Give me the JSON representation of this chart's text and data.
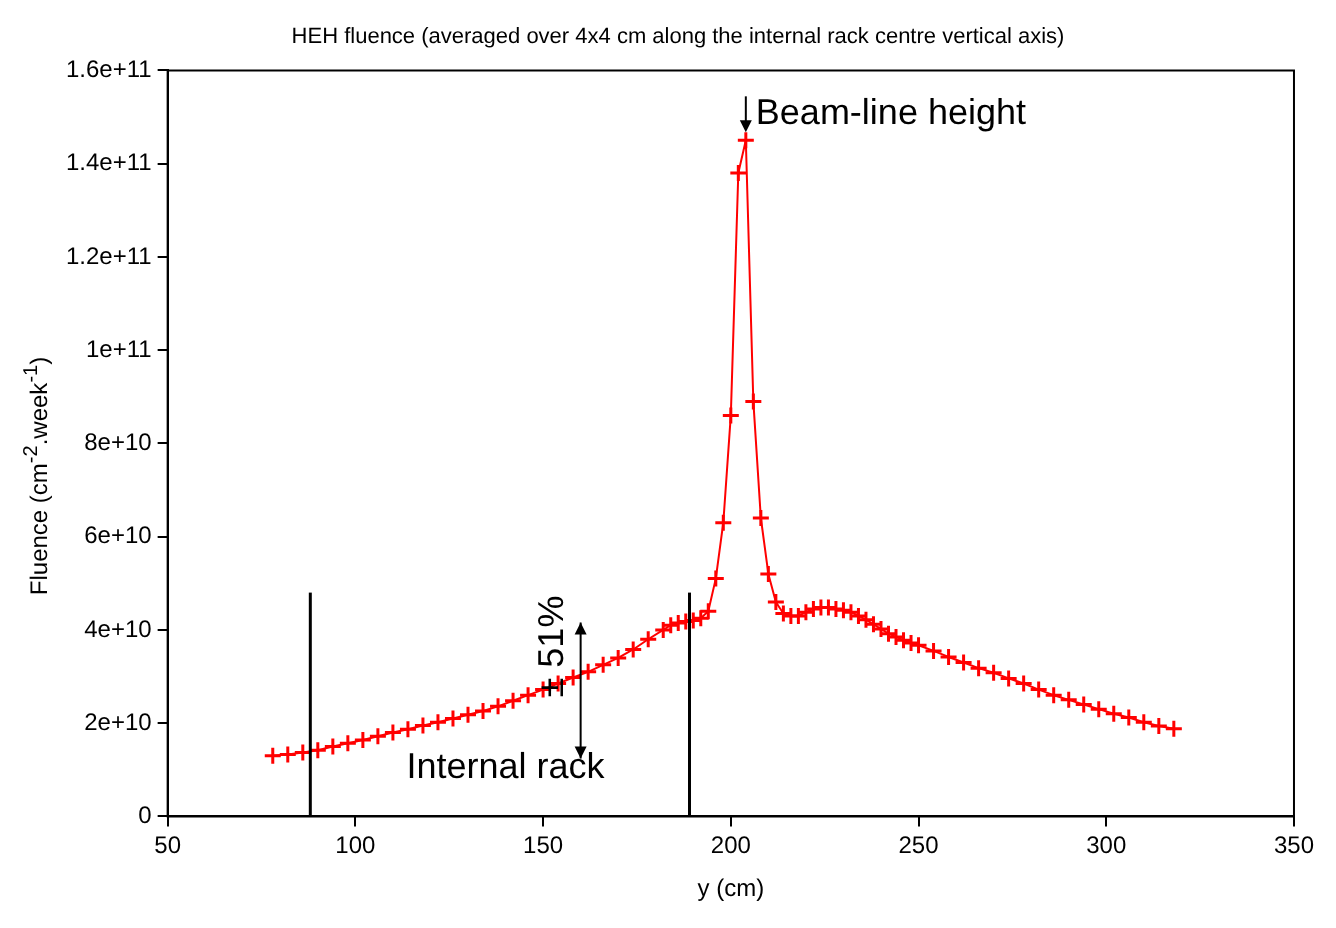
{
  "chart_data": {
    "type": "line",
    "title": "HEH fluence (averaged over 4x4 cm along the internal rack centre vertical axis)",
    "xlabel": "y (cm)",
    "ylabel": "Fluence (cm$^{-2}$.week$^{-1}$)",
    "x": [
      78,
      82,
      86,
      90,
      94,
      98,
      102,
      106,
      110,
      114,
      118,
      122,
      126,
      130,
      134,
      138,
      142,
      146,
      150,
      154,
      158,
      162,
      166,
      170,
      174,
      178,
      182,
      184,
      186,
      188,
      190,
      192,
      194,
      196,
      198,
      200,
      202,
      204,
      206,
      208,
      210,
      212,
      214,
      216,
      218,
      220,
      222,
      224,
      226,
      228,
      230,
      232,
      234,
      236,
      238,
      240,
      242,
      244,
      246,
      248,
      250,
      254,
      258,
      262,
      266,
      270,
      274,
      278,
      282,
      286,
      290,
      294,
      298,
      302,
      306,
      310,
      314,
      318
    ],
    "series": [
      {
        "color": "#ff0000",
        "values": [
          13000000000.0,
          13300000000.0,
          13700000000.0,
          14200000000.0,
          15000000000.0,
          15700000000.0,
          16400000000.0,
          17200000000.0,
          18000000000.0,
          18700000000.0,
          19500000000.0,
          20200000000.0,
          21000000000.0,
          21800000000.0,
          22600000000.0,
          23600000000.0,
          24800000000.0,
          26000000000.0,
          27200000000.0,
          28500000000.0,
          29800000000.0,
          31000000000.0,
          32500000000.0,
          34000000000.0,
          35800000000.0,
          38000000000.0,
          40000000000.0,
          41000000000.0,
          41500000000.0,
          41800000000.0,
          42000000000.0,
          42500000000.0,
          44000000000.0,
          51000000000.0,
          63000000000.0,
          86000000000.0,
          138000000000.0,
          145000000000.0,
          89000000000.0,
          64000000000.0,
          52000000000.0,
          46000000000.0,
          43500000000.0,
          43000000000.0,
          43000000000.0,
          43800000000.0,
          44500000000.0,
          44800000000.0,
          44800000000.0,
          44500000000.0,
          44200000000.0,
          43800000000.0,
          43000000000.0,
          42200000000.0,
          41200000000.0,
          40200000000.0,
          39200000000.0,
          38500000000.0,
          37800000000.0,
          37200000000.0,
          36700000000.0,
          35500000000.0,
          34200000000.0,
          33000000000.0,
          31800000000.0,
          30800000000.0,
          29600000000.0,
          28500000000.0,
          27200000000.0,
          26000000000.0,
          25000000000.0,
          24000000000.0,
          23000000000.0,
          22000000000.0,
          21200000000.0,
          20200000000.0,
          19400000000.0,
          18800000000.0
        ]
      }
    ],
    "xlim": [
      50,
      350
    ],
    "xticks": [
      50,
      100,
      150,
      200,
      250,
      300,
      350
    ],
    "ylim": [
      0,
      160000000000.0
    ],
    "yticks": [
      0,
      {
        "value": 20000000000.0,
        "label": "2e+10"
      },
      {
        "value": 40000000000.0,
        "label": "4e+10"
      },
      {
        "value": 60000000000.0,
        "label": "6e+10"
      },
      {
        "value": 80000000000.0,
        "label": "8e+10"
      },
      {
        "value": 100000000000.0,
        "label": "1e+11"
      },
      {
        "value": 120000000000.0,
        "label": "1.2e+11"
      },
      {
        "value": 140000000000.0,
        "label": "1.4e+11"
      },
      {
        "value": 160000000000.0,
        "label": "1.6e+11"
      }
    ],
    "ref_lines": [
      {
        "axis": "x",
        "value": 88,
        "color": "#000000"
      },
      {
        "axis": "x",
        "value": 189,
        "color": "#000000"
      }
    ],
    "annotations": [
      {
        "text": "Beam-line height",
        "x": 204,
        "y": 145000000000.0
      },
      {
        "text": "± 51%",
        "x": 160,
        "y": 27000000000.0
      },
      "Internal rack"
    ],
    "grid": false,
    "legend": false,
    "marker": "cross",
    "line_style": "solid"
  }
}
